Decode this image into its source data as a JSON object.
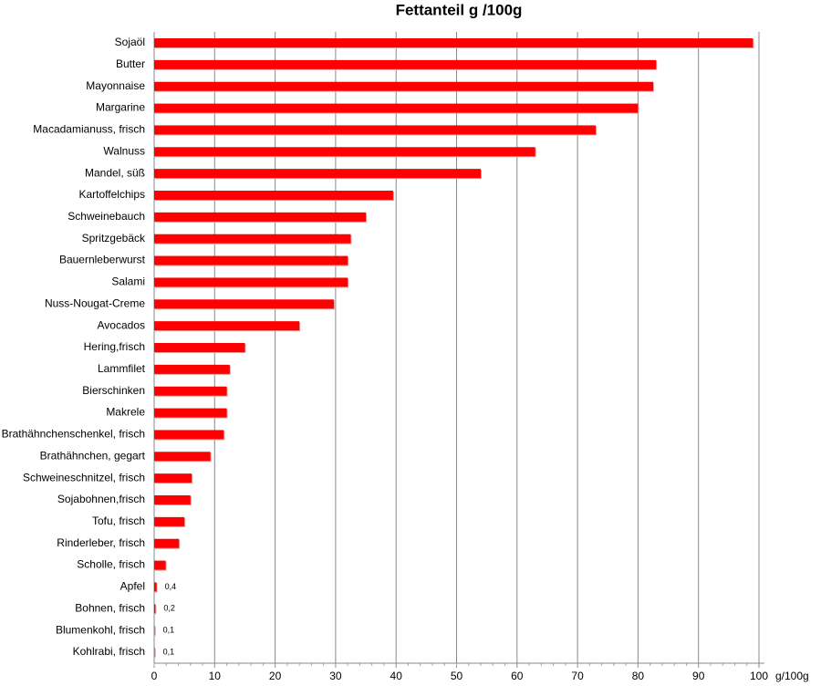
{
  "chart_data": {
    "type": "bar",
    "orientation": "horizontal",
    "title": "Fettanteil g /100g",
    "x_label": "g/100g",
    "categories": [
      "Sojaöl",
      "Butter",
      "Mayonnaise",
      "Margarine",
      "Macadamianuss, frisch",
      "Walnuss",
      "Mandel, süß",
      "Kartoffelchips",
      "Schweinebauch",
      "Spritzgebäck",
      "Bauernleberwurst",
      "Salami",
      "Nuss-Nougat-Creme",
      "Avocados",
      "Hering,frisch",
      "Lammfilet",
      "Bierschinken",
      "Makrele",
      "Brathähnchenschenkel, frisch",
      "Brathähnchen, gegart",
      "Schweineschnitzel, frisch",
      "Sojabohnen,frisch",
      "Tofu, frisch",
      "Rinderleber, frisch",
      "Scholle, frisch",
      "Apfel",
      "Bohnen, frisch",
      "Blumenkohl, frisch",
      "Kohlrabi, frisch"
    ],
    "values": [
      99,
      83,
      82.5,
      80,
      73,
      63,
      54,
      39.5,
      35,
      32.5,
      32,
      32,
      29.7,
      24,
      15,
      12.5,
      12,
      12,
      11.5,
      9.3,
      6.2,
      6,
      5,
      4.1,
      1.9,
      0.4,
      0.2,
      0.1,
      0.1
    ],
    "value_labels": [
      null,
      null,
      null,
      null,
      null,
      null,
      null,
      null,
      null,
      null,
      null,
      null,
      null,
      null,
      null,
      null,
      null,
      null,
      null,
      null,
      null,
      null,
      null,
      null,
      null,
      "0,4",
      "0,2",
      "0,1",
      "0,1"
    ],
    "color": "#ff0000",
    "xlim": [
      0,
      100
    ],
    "xticks": [
      0,
      10,
      20,
      30,
      40,
      50,
      60,
      70,
      80,
      90,
      100
    ],
    "grid": true
  }
}
